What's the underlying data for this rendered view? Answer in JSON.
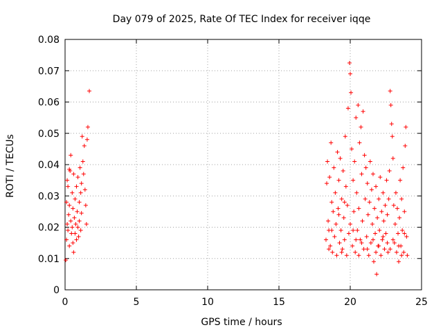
{
  "chart_data": {
    "type": "scatter",
    "title": "Day 079 of 2025, Rate Of TEC Index for receiver iqqe",
    "xlabel": "GPS time / hours",
    "ylabel": "ROTI / TECUs",
    "xlim": [
      0,
      25
    ],
    "ylim": [
      0,
      0.08
    ],
    "xticks": [
      0,
      5,
      10,
      15,
      20,
      25
    ],
    "xtick_labels": [
      "0",
      "5",
      "10",
      "15",
      "20",
      "25"
    ],
    "yticks": [
      0,
      0.01,
      0.02,
      0.03,
      0.04,
      0.05,
      0.06,
      0.07,
      0.08
    ],
    "ytick_labels": [
      "0",
      "0.01",
      "0.02",
      "0.03",
      "0.04",
      "0.05",
      "0.06",
      "0.07",
      "0.08"
    ],
    "grid": true,
    "marker": "+",
    "series": [
      {
        "name": "ROTI",
        "color": "#ff0000",
        "points": [
          [
            0.05,
            0.0095
          ],
          [
            0.1,
            0.016
          ],
          [
            0.1,
            0.028
          ],
          [
            0.15,
            0.021
          ],
          [
            0.2,
            0.019
          ],
          [
            0.2,
            0.033
          ],
          [
            0.25,
            0.024
          ],
          [
            0.3,
            0.014
          ],
          [
            0.3,
            0.027
          ],
          [
            0.35,
            0.038
          ],
          [
            0.4,
            0.043
          ],
          [
            0.4,
            0.022
          ],
          [
            0.45,
            0.018
          ],
          [
            0.5,
            0.031
          ],
          [
            0.5,
            0.02
          ],
          [
            0.55,
            0.026
          ],
          [
            0.6,
            0.012
          ],
          [
            0.6,
            0.037
          ],
          [
            0.65,
            0.023
          ],
          [
            0.7,
            0.018
          ],
          [
            0.7,
            0.029
          ],
          [
            0.75,
            0.021
          ],
          [
            0.8,
            0.033
          ],
          [
            0.8,
            0.016
          ],
          [
            0.85,
            0.025
          ],
          [
            0.9,
            0.036
          ],
          [
            0.9,
            0.02
          ],
          [
            0.95,
            0.017
          ],
          [
            1.0,
            0.028
          ],
          [
            1.0,
            0.022
          ],
          [
            1.05,
            0.039
          ],
          [
            1.1,
            0.031
          ],
          [
            1.1,
            0.019
          ],
          [
            1.15,
            0.034
          ],
          [
            1.2,
            0.049
          ],
          [
            1.25,
            0.041
          ],
          [
            1.3,
            0.037
          ],
          [
            1.35,
            0.046
          ],
          [
            1.4,
            0.032
          ],
          [
            1.45,
            0.027
          ],
          [
            1.5,
            0.021
          ],
          [
            1.55,
            0.048
          ],
          [
            1.6,
            0.052
          ],
          [
            1.7,
            0.0635
          ],
          [
            0.15,
            0.035
          ],
          [
            0.3,
            0.0385
          ],
          [
            0.55,
            0.015
          ],
          [
            1.15,
            0.0245
          ],
          [
            18.3,
            0.016
          ],
          [
            18.35,
            0.034
          ],
          [
            18.4,
            0.041
          ],
          [
            18.45,
            0.022
          ],
          [
            18.5,
            0.019
          ],
          [
            18.55,
            0.036
          ],
          [
            18.6,
            0.014
          ],
          [
            18.65,
            0.047
          ],
          [
            18.7,
            0.028
          ],
          [
            18.75,
            0.012
          ],
          [
            18.8,
            0.025
          ],
          [
            18.85,
            0.039
          ],
          [
            18.9,
            0.017
          ],
          [
            18.95,
            0.031
          ],
          [
            19.0,
            0.021
          ],
          [
            19.05,
            0.011
          ],
          [
            19.1,
            0.044
          ],
          [
            19.15,
            0.026
          ],
          [
            19.2,
            0.035
          ],
          [
            19.25,
            0.015
          ],
          [
            19.3,
            0.042
          ],
          [
            19.35,
            0.019
          ],
          [
            19.4,
            0.029
          ],
          [
            19.45,
            0.013
          ],
          [
            19.5,
            0.038
          ],
          [
            19.55,
            0.023
          ],
          [
            19.6,
            0.016
          ],
          [
            19.65,
            0.049
          ],
          [
            19.7,
            0.033
          ],
          [
            19.75,
            0.011
          ],
          [
            19.8,
            0.027
          ],
          [
            19.85,
            0.058
          ],
          [
            19.9,
            0.018
          ],
          [
            19.95,
            0.0725
          ],
          [
            20.0,
            0.069
          ],
          [
            20.0,
            0.021
          ],
          [
            20.05,
            0.063
          ],
          [
            20.1,
            0.045
          ],
          [
            20.15,
            0.014
          ],
          [
            20.2,
            0.035
          ],
          [
            20.25,
            0.025
          ],
          [
            20.3,
            0.041
          ],
          [
            20.35,
            0.012
          ],
          [
            20.4,
            0.055
          ],
          [
            20.45,
            0.031
          ],
          [
            20.5,
            0.019
          ],
          [
            20.55,
            0.059
          ],
          [
            20.6,
            0.026
          ],
          [
            20.65,
            0.047
          ],
          [
            20.7,
            0.016
          ],
          [
            20.75,
            0.052
          ],
          [
            20.8,
            0.037
          ],
          [
            20.85,
            0.022
          ],
          [
            20.9,
            0.057
          ],
          [
            20.95,
            0.013
          ],
          [
            21.0,
            0.043
          ],
          [
            21.05,
            0.029
          ],
          [
            21.1,
            0.039
          ],
          [
            21.15,
            0.017
          ],
          [
            21.2,
            0.034
          ],
          [
            21.25,
            0.024
          ],
          [
            21.3,
            0.011
          ],
          [
            21.35,
            0.028
          ],
          [
            21.4,
            0.041
          ],
          [
            21.45,
            0.015
          ],
          [
            21.5,
            0.032
          ],
          [
            21.55,
            0.021
          ],
          [
            21.6,
            0.037
          ],
          [
            21.65,
            0.009
          ],
          [
            21.7,
            0.026
          ],
          [
            21.75,
            0.018
          ],
          [
            21.8,
            0.033
          ],
          [
            21.85,
            0.005
          ],
          [
            21.9,
            0.023
          ],
          [
            21.95,
            0.014
          ],
          [
            22.0,
            0.029
          ],
          [
            22.05,
            0.019
          ],
          [
            22.1,
            0.036
          ],
          [
            22.15,
            0.011
          ],
          [
            22.2,
            0.025
          ],
          [
            22.25,
            0.016
          ],
          [
            22.3,
            0.031
          ],
          [
            22.35,
            0.022
          ],
          [
            22.4,
            0.013
          ],
          [
            22.45,
            0.027
          ],
          [
            22.5,
            0.018
          ],
          [
            22.55,
            0.035
          ],
          [
            22.6,
            0.024
          ],
          [
            22.65,
            0.012
          ],
          [
            22.7,
            0.029
          ],
          [
            22.75,
            0.038
          ],
          [
            22.8,
            0.0635
          ],
          [
            22.85,
            0.059
          ],
          [
            22.9,
            0.053
          ],
          [
            22.95,
            0.049
          ],
          [
            23.0,
            0.042
          ],
          [
            23.05,
            0.027
          ],
          [
            23.1,
            0.015
          ],
          [
            23.15,
            0.021
          ],
          [
            23.2,
            0.031
          ],
          [
            23.25,
            0.012
          ],
          [
            23.3,
            0.026
          ],
          [
            23.35,
            0.018
          ],
          [
            23.4,
            0.009
          ],
          [
            23.45,
            0.023
          ],
          [
            23.5,
            0.035
          ],
          [
            23.55,
            0.014
          ],
          [
            23.6,
            0.029
          ],
          [
            23.65,
            0.019
          ],
          [
            23.7,
            0.039
          ],
          [
            23.75,
            0.012
          ],
          [
            23.8,
            0.025
          ],
          [
            23.85,
            0.046
          ],
          [
            23.9,
            0.052
          ],
          [
            23.95,
            0.017
          ],
          [
            24.0,
            0.011
          ],
          [
            18.7,
            0.019
          ],
          [
            19.2,
            0.024
          ],
          [
            19.6,
            0.028
          ],
          [
            20.2,
            0.019
          ],
          [
            20.4,
            0.016
          ],
          [
            20.8,
            0.015
          ],
          [
            21.2,
            0.013
          ],
          [
            21.6,
            0.016
          ],
          [
            22.0,
            0.014
          ],
          [
            22.3,
            0.017
          ],
          [
            22.6,
            0.015
          ],
          [
            23.0,
            0.016
          ],
          [
            23.4,
            0.014
          ],
          [
            23.8,
            0.018
          ],
          [
            19.4,
            0.012
          ],
          [
            20.6,
            0.011
          ],
          [
            21.8,
            0.012
          ],
          [
            22.8,
            0.013
          ],
          [
            23.6,
            0.011
          ],
          [
            18.5,
            0.013
          ]
        ]
      }
    ]
  }
}
